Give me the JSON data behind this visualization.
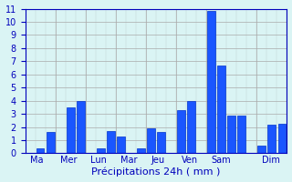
{
  "values": [
    0,
    0.4,
    1.6,
    0,
    3.5,
    4.0,
    0,
    0.35,
    1.7,
    1.25,
    0,
    0.4,
    1.9,
    1.65,
    0,
    3.25,
    4.0,
    0,
    10.8,
    6.7,
    2.9,
    2.85,
    0,
    0.6,
    2.2,
    2.25
  ],
  "n_bars": 26,
  "day_tick_positions": [
    0,
    3,
    6,
    9,
    12,
    15,
    18,
    23
  ],
  "day_labels": [
    "Ma",
    "Mer",
    "Lun",
    "Mar",
    "Jeu",
    "Ven",
    "Sam",
    "Dim"
  ],
  "bar_color": "#1a56ff",
  "bar_edge_color": "#0033cc",
  "background_color": "#daf4f4",
  "grid_color": "#aaaaaa",
  "text_color": "#0000bb",
  "xlabel": "Précipitations 24h ( mm )",
  "ylim": [
    0,
    11
  ],
  "yticks": [
    0,
    1,
    2,
    3,
    4,
    5,
    6,
    7,
    8,
    9,
    10,
    11
  ],
  "xlabel_fontsize": 8,
  "ytick_fontsize": 7,
  "xtick_fontsize": 7
}
